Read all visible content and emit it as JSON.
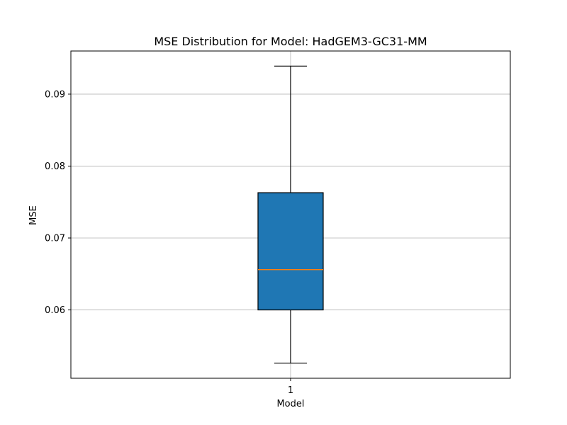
{
  "chart_data": {
    "type": "box",
    "title": "MSE Distribution for Model: HadGEM3-GC31-MM",
    "xlabel": "Model",
    "ylabel": "MSE",
    "x_tick_labels": [
      "1"
    ],
    "y_ticks": [
      0.06,
      0.07,
      0.08,
      0.09
    ],
    "y_tick_labels": [
      "0.06",
      "0.07",
      "0.08",
      "0.09"
    ],
    "ylim": [
      0.0505,
      0.096
    ],
    "grid": true,
    "boxes": [
      {
        "label": "1",
        "whisker_low": 0.0526,
        "q1": 0.06,
        "median": 0.0656,
        "q3": 0.0763,
        "whisker_high": 0.0939
      }
    ],
    "colors": {
      "box_fill": "#1f77b4",
      "median": "#ff7f0e",
      "grid": "#b0b0b0",
      "edge": "#000000"
    }
  }
}
